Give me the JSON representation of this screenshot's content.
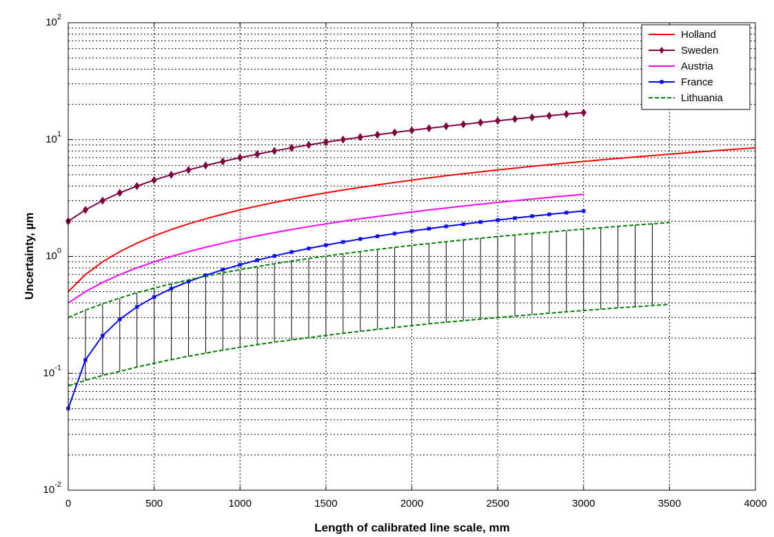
{
  "chart_data": {
    "type": "line",
    "xlabel": "Length of calibrated line scale, mm",
    "ylabel": "Uncertainty, µm",
    "xlim": [
      0,
      4000
    ],
    "ylim": [
      0.01,
      100
    ],
    "yscale": "log",
    "grid": true,
    "grid_style": "dotted",
    "legend_position": "top-right",
    "x_ticks": [
      "0",
      "500",
      "1000",
      "1500",
      "2000",
      "2500",
      "3000",
      "3500",
      "4000"
    ],
    "y_ticks": [
      {
        "base": "10",
        "exp": "-2",
        "value": 0.01
      },
      {
        "base": "10",
        "exp": "-1",
        "value": 0.1
      },
      {
        "base": "10",
        "exp": "0",
        "value": 1
      },
      {
        "base": "10",
        "exp": "1",
        "value": 10
      },
      {
        "base": "10",
        "exp": "2",
        "value": 100
      }
    ],
    "series": [
      {
        "name": "Holland",
        "color": "#ff0000",
        "style": "solid",
        "marker": "none",
        "x": [
          0,
          100,
          200,
          300,
          400,
          500,
          600,
          700,
          800,
          900,
          1000,
          1100,
          1200,
          1300,
          1400,
          1500,
          1600,
          1700,
          1800,
          1900,
          2000,
          2100,
          2200,
          2300,
          2400,
          2500,
          2600,
          2700,
          2800,
          2900,
          3000,
          3100,
          3200,
          3300,
          3400,
          3500,
          3600,
          3700,
          3800,
          3900,
          4000
        ],
        "y": [
          0.5,
          0.7,
          0.9,
          1.1,
          1.3,
          1.5,
          1.7,
          1.9,
          2.1,
          2.3,
          2.5,
          2.7,
          2.9,
          3.1,
          3.3,
          3.5,
          3.7,
          3.9,
          4.1,
          4.3,
          4.5,
          4.7,
          4.9,
          5.1,
          5.3,
          5.5,
          5.7,
          5.9,
          6.1,
          6.3,
          6.5,
          6.7,
          6.9,
          7.1,
          7.3,
          7.5,
          7.7,
          7.9,
          8.1,
          8.3,
          8.5
        ]
      },
      {
        "name": "Sweden",
        "color": "#800040",
        "style": "solid",
        "marker": "diamond",
        "x": [
          0,
          100,
          200,
          300,
          400,
          500,
          600,
          700,
          800,
          900,
          1000,
          1100,
          1200,
          1300,
          1400,
          1500,
          1600,
          1700,
          1800,
          1900,
          2000,
          2100,
          2200,
          2300,
          2400,
          2500,
          2600,
          2700,
          2800,
          2900,
          3000
        ],
        "y": [
          2.0,
          2.5,
          3.0,
          3.5,
          4.0,
          4.5,
          5.0,
          5.5,
          6.0,
          6.5,
          7.0,
          7.5,
          8.0,
          8.5,
          9.0,
          9.5,
          10.0,
          10.5,
          11.0,
          11.5,
          12.0,
          12.5,
          13.0,
          13.5,
          14.0,
          14.5,
          15.0,
          15.5,
          16.0,
          16.5,
          17.0
        ]
      },
      {
        "name": "Austria",
        "color": "#ff00ff",
        "style": "solid",
        "marker": "none",
        "x": [
          0,
          100,
          200,
          300,
          400,
          500,
          600,
          700,
          800,
          900,
          1000,
          1100,
          1200,
          1300,
          1400,
          1500,
          1600,
          1700,
          1800,
          1900,
          2000,
          2100,
          2200,
          2300,
          2400,
          2500,
          2600,
          2700,
          2800,
          2900,
          3000
        ],
        "y": [
          0.4,
          0.5,
          0.6,
          0.7,
          0.8,
          0.9,
          1.0,
          1.1,
          1.2,
          1.3,
          1.4,
          1.5,
          1.6,
          1.7,
          1.8,
          1.9,
          2.0,
          2.1,
          2.2,
          2.3,
          2.4,
          2.5,
          2.6,
          2.7,
          2.8,
          2.9,
          3.0,
          3.1,
          3.2,
          3.3,
          3.4
        ]
      },
      {
        "name": "France",
        "color": "#0000ff",
        "style": "solid",
        "marker": "asterisk",
        "x": [
          0,
          100,
          200,
          300,
          400,
          500,
          600,
          700,
          800,
          900,
          1000,
          1100,
          1200,
          1300,
          1400,
          1500,
          1600,
          1700,
          1800,
          1900,
          2000,
          2100,
          2200,
          2300,
          2400,
          2500,
          2600,
          2700,
          2800,
          2900,
          3000
        ],
        "y": [
          0.05,
          0.13,
          0.21,
          0.29,
          0.37,
          0.45,
          0.53,
          0.61,
          0.69,
          0.77,
          0.85,
          0.93,
          1.01,
          1.09,
          1.17,
          1.25,
          1.33,
          1.41,
          1.49,
          1.57,
          1.65,
          1.73,
          1.81,
          1.89,
          1.97,
          2.05,
          2.13,
          2.21,
          2.29,
          2.37,
          2.45
        ]
      },
      {
        "name": "Lithuania",
        "color": "#008000",
        "style": "dashed",
        "marker": "none",
        "band": true,
        "x": [
          0,
          100,
          200,
          300,
          400,
          500,
          600,
          700,
          800,
          900,
          1000,
          1100,
          1200,
          1300,
          1400,
          1500,
          1600,
          1700,
          1800,
          1900,
          2000,
          2100,
          2200,
          2300,
          2400,
          2500,
          2600,
          2700,
          2800,
          2900,
          3000,
          3100,
          3200,
          3300,
          3400,
          3500
        ],
        "upper": [
          0.3,
          0.347,
          0.394,
          0.441,
          0.489,
          0.536,
          0.583,
          0.63,
          0.677,
          0.724,
          0.771,
          0.819,
          0.866,
          0.913,
          0.96,
          1.007,
          1.054,
          1.101,
          1.149,
          1.196,
          1.243,
          1.29,
          1.337,
          1.384,
          1.431,
          1.479,
          1.526,
          1.573,
          1.62,
          1.667,
          1.714,
          1.761,
          1.809,
          1.856,
          1.903,
          1.95
        ],
        "lower": [
          0.078,
          0.087,
          0.096,
          0.104,
          0.113,
          0.122,
          0.131,
          0.14,
          0.149,
          0.158,
          0.167,
          0.176,
          0.185,
          0.193,
          0.202,
          0.211,
          0.22,
          0.229,
          0.238,
          0.247,
          0.256,
          0.265,
          0.274,
          0.282,
          0.291,
          0.3,
          0.309,
          0.318,
          0.327,
          0.336,
          0.345,
          0.354,
          0.363,
          0.371,
          0.38,
          0.389
        ]
      }
    ]
  }
}
